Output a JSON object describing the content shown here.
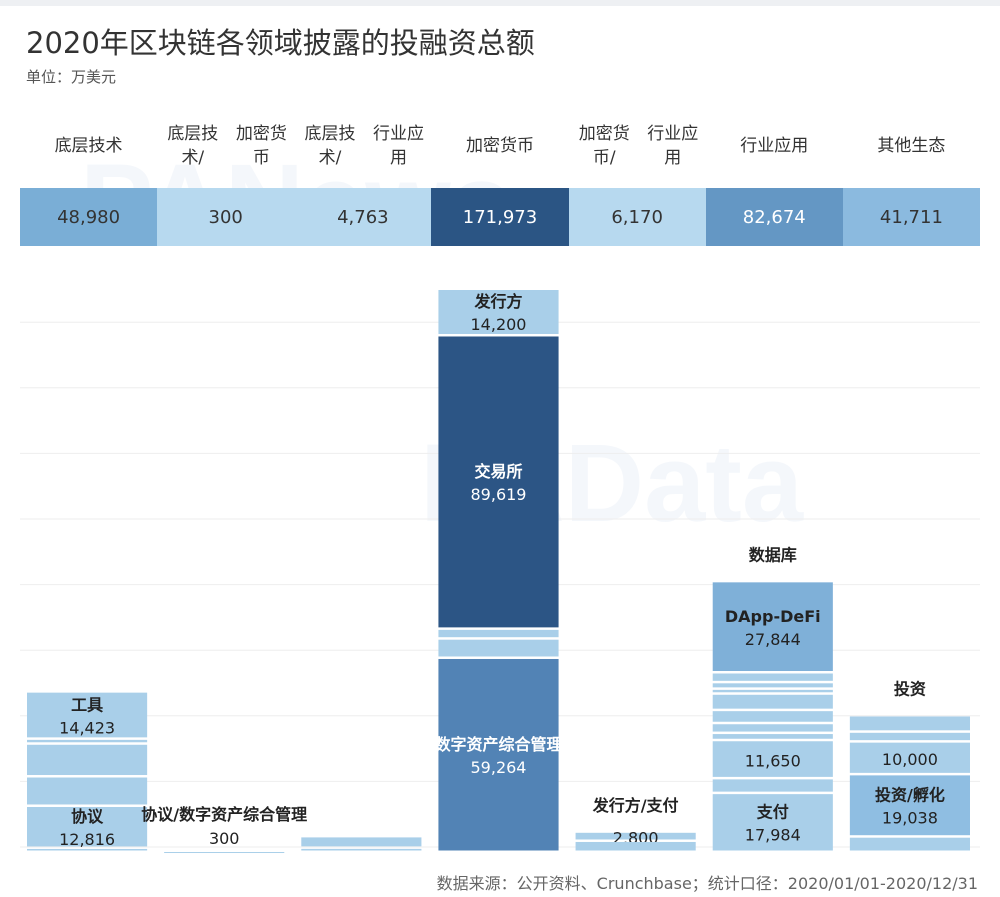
{
  "title": "2020年区块链各领域披露的投融资总额",
  "unit": "单位：万美元",
  "footer": "数据来源：公开资料、Crunchbase；统计口径：2020/01/01-2020/12/31",
  "chart_data": {
    "type": "bar",
    "stacked": true,
    "title": "2020年区块链各领域披露的投融资总额",
    "ylabel": "万美元",
    "ylim": [
      0,
      171973
    ],
    "grid": true,
    "categories": [
      "底层技术",
      "底层技术/\n加密货币",
      "底层技术/\n行业应用",
      "加密货币",
      "加密货币/\n行业应用",
      "行业应用",
      "其他生态"
    ],
    "category_lines": [
      [
        "底层技术"
      ],
      [
        "底层技术/",
        "加密货币"
      ],
      [
        "底层技术/",
        "行业应用"
      ],
      [
        "加密货币"
      ],
      [
        "加密货币/",
        "行业应用"
      ],
      [
        "行业应用"
      ],
      [
        "其他生态"
      ]
    ],
    "totals": [
      "48,980",
      "300",
      "4,763",
      "171,973",
      "6,170",
      "82,674",
      "41,711"
    ],
    "total_values": [
      48980,
      300,
      4763,
      171973,
      6170,
      82674,
      41711
    ],
    "total_colors": [
      "#7aaed6",
      "#b7d9ef",
      "#b7d9ef",
      "#2b5584",
      "#b7d9ef",
      "#6497c4",
      "#8bbadf"
    ],
    "segments": [
      [
        {
          "label": "工具",
          "value": 14423,
          "text": "14,423"
        },
        {
          "value": 1500
        },
        {
          "value": 10000
        },
        {
          "value": 9000
        },
        {
          "label": "协议",
          "value": 12816,
          "text": "12,816"
        },
        {
          "value": 1241
        }
      ],
      [
        {
          "label": "协议/数字资产综合管理",
          "value": 300,
          "text": "300"
        }
      ],
      [
        {
          "value": 3500
        },
        {
          "value": 1263
        }
      ],
      [
        {
          "label": "发行方",
          "value": 14200,
          "text": "14,200"
        },
        {
          "label": "交易所",
          "value": 89619,
          "text": "89,619",
          "dark": true
        },
        {
          "value": 3000
        },
        {
          "value": 5890
        },
        {
          "label": "数字资产综合管理",
          "value": 59264,
          "text": "59,264",
          "mid": true
        }
      ],
      [
        {
          "label": "发行方/支付",
          "value": 2800,
          "text": "2,800"
        },
        {
          "value": 3370
        }
      ],
      [
        {
          "label": "DApp-DeFi",
          "value": 27844,
          "text": "27,844",
          "mid2": true
        },
        {
          "value": 3000
        },
        {
          "value": 2000
        },
        {
          "value": 1500
        },
        {
          "value": 5000
        },
        {
          "value": 4000
        },
        {
          "value": 3000
        },
        {
          "value": 2196
        },
        {
          "label": "数据库",
          "value": 11650,
          "text": "11,650"
        },
        {
          "value": 4500
        },
        {
          "label": "支付",
          "value": 17984,
          "text": "17,984"
        }
      ],
      [
        {
          "value": 5000
        },
        {
          "value": 3000
        },
        {
          "label": "投资",
          "value": 10000,
          "text": "10,000"
        },
        {
          "label": "投资/孵化",
          "value": 19038,
          "text": "19,038"
        },
        {
          "value": 4673
        }
      ]
    ]
  }
}
